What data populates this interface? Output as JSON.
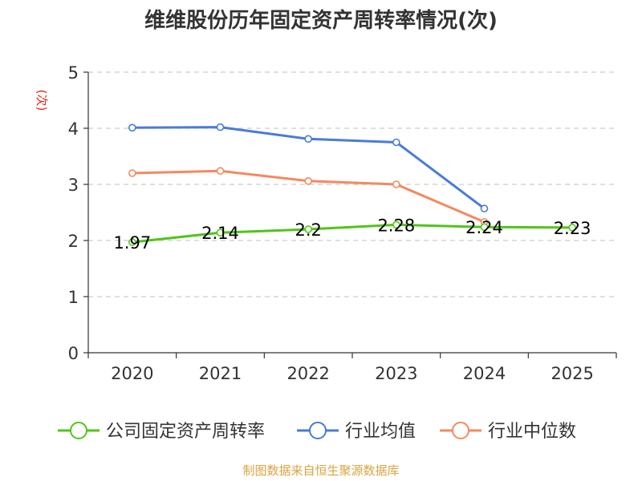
{
  "chart_data": {
    "type": "line",
    "title": "维维股份历年固定资产周转率情况(次)",
    "ylabel": "(次)",
    "xlabel": "",
    "categories": [
      "2020",
      "2021",
      "2022",
      "2023",
      "2024",
      "2025"
    ],
    "ylim": [
      0,
      5
    ],
    "yticks": [
      "0",
      "1",
      "2",
      "3",
      "4",
      "5"
    ],
    "grid": true,
    "legend_position": "bottom",
    "series": [
      {
        "name": "公司固定资产周转率",
        "color": "#52c41a",
        "values": [
          1.97,
          2.14,
          2.2,
          2.28,
          2.24,
          2.23
        ],
        "labels": [
          "1.97",
          "2.14",
          "2.2",
          "2.28",
          "2.24",
          "2.23"
        ]
      },
      {
        "name": "行业均值",
        "color": "#4a7bd8",
        "values": [
          4.01,
          4.02,
          3.81,
          3.75,
          2.57,
          null
        ]
      },
      {
        "name": "行业中位数",
        "color": "#f4895f",
        "values": [
          3.2,
          3.24,
          3.06,
          3.0,
          2.33,
          null
        ]
      }
    ]
  },
  "source": "制图数据来自恒生聚源数据库"
}
